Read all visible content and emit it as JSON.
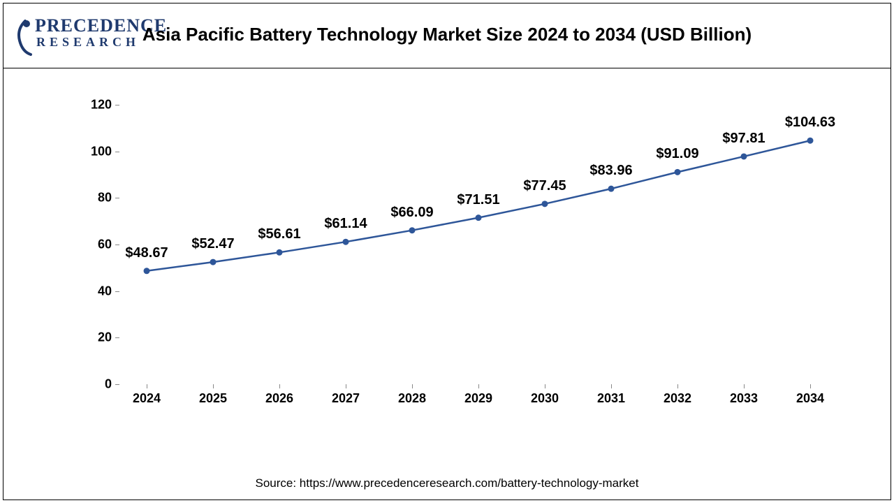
{
  "logo": {
    "line1": "PRECEDENCE",
    "line2": "RESEARCH",
    "color": "#1f3a6e"
  },
  "chart": {
    "type": "line",
    "title": "Asia Pacific Battery Technology Market Size 2024 to 2034 (USD Billion)",
    "title_fontsize": 26,
    "title_fontweight": "bold",
    "categories": [
      "2024",
      "2025",
      "2026",
      "2027",
      "2028",
      "2029",
      "2030",
      "2031",
      "2032",
      "2033",
      "2034"
    ],
    "values": [
      48.67,
      52.47,
      56.61,
      61.14,
      66.09,
      71.51,
      77.45,
      83.96,
      91.09,
      97.81,
      104.63
    ],
    "value_labels": [
      "$48.67",
      "$52.47",
      "$56.61",
      "$61.14",
      "$66.09",
      "$71.51",
      "$77.45",
      "$83.96",
      "$91.09",
      "$97.81",
      "$104.63"
    ],
    "line_color": "#2e5699",
    "marker_color": "#2e5699",
    "marker_style": "circle",
    "marker_size": 9,
    "line_width": 2.5,
    "ylim": [
      0,
      120
    ],
    "ytick_step": 20,
    "ytick_labels": [
      "0",
      "20",
      "40",
      "60",
      "80",
      "100",
      "120"
    ],
    "axis_label_fontsize": 18,
    "axis_label_fontweight": "bold",
    "data_label_fontsize": 20,
    "data_label_fontweight": "bold",
    "background_color": "#ffffff",
    "axis_color": "#888888",
    "grid": false
  },
  "source": {
    "text": "Source: https://www.precedenceresearch.com/battery-technology-market",
    "fontsize": 17,
    "color": "#000000"
  }
}
